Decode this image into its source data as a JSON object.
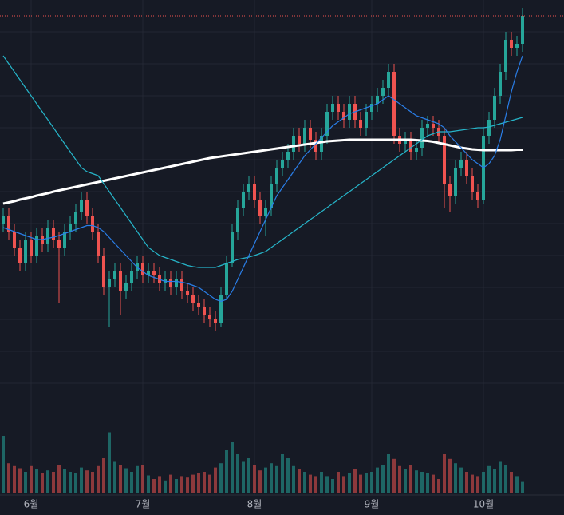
{
  "chart_data": {
    "type": "candlestick",
    "categories": [
      null,
      null,
      null,
      null,
      null,
      "6월",
      null,
      null,
      null,
      null,
      null,
      null,
      null,
      null,
      null,
      null,
      null,
      null,
      null,
      null,
      null,
      null,
      null,
      null,
      null,
      "7월",
      null,
      null,
      null,
      null,
      null,
      null,
      null,
      null,
      null,
      null,
      null,
      null,
      null,
      null,
      null,
      null,
      null,
      null,
      null,
      "8월",
      null,
      null,
      null,
      null,
      null,
      null,
      null,
      null,
      null,
      null,
      null,
      null,
      null,
      null,
      null,
      null,
      null,
      null,
      null,
      null,
      "9월",
      null,
      null,
      null,
      null,
      null,
      null,
      null,
      null,
      null,
      null,
      null,
      null,
      null,
      null,
      null,
      null,
      null,
      null,
      null,
      "10월",
      null,
      null,
      null,
      null,
      null,
      null,
      null
    ],
    "open": [
      48,
      50,
      46,
      42,
      38,
      44,
      40,
      45,
      43,
      47,
      44,
      42,
      46,
      48,
      51,
      54,
      50,
      46,
      40,
      32,
      34,
      36,
      31,
      33,
      36,
      38,
      35,
      36,
      35,
      33,
      34,
      32,
      34,
      31,
      30,
      28,
      27,
      25,
      24,
      23,
      30,
      38,
      46,
      52,
      56,
      58,
      54,
      50,
      52,
      58,
      62,
      64,
      66,
      70,
      68,
      72,
      69,
      66,
      70,
      76,
      78,
      76,
      74,
      78,
      74,
      72,
      76,
      78,
      80,
      82,
      86,
      70,
      68,
      69,
      66,
      67,
      72,
      73,
      72,
      70,
      58,
      55,
      62,
      64,
      60,
      56,
      54,
      70,
      74,
      80,
      86,
      94,
      92,
      93
    ],
    "high": [
      52,
      52,
      48,
      44,
      46,
      46,
      47,
      47,
      49,
      49,
      46,
      48,
      50,
      53,
      56,
      56,
      52,
      48,
      42,
      36,
      38,
      38,
      35,
      38,
      40,
      40,
      38,
      38,
      37,
      36,
      36,
      36,
      36,
      33,
      32,
      30,
      29,
      27,
      26,
      32,
      40,
      48,
      54,
      58,
      60,
      60,
      56,
      54,
      60,
      64,
      66,
      68,
      72,
      72,
      74,
      74,
      71,
      72,
      78,
      80,
      80,
      78,
      80,
      80,
      76,
      78,
      80,
      82,
      84,
      88,
      88,
      72,
      71,
      71,
      69,
      74,
      75,
      75,
      74,
      72,
      60,
      64,
      66,
      66,
      62,
      58,
      72,
      76,
      82,
      88,
      96,
      96,
      95,
      102
    ],
    "low": [
      46,
      44,
      40,
      36,
      36,
      38,
      38,
      41,
      41,
      42,
      28,
      40,
      44,
      46,
      49,
      48,
      44,
      38,
      30,
      22,
      32,
      25,
      29,
      31,
      34,
      33,
      33,
      33,
      31,
      31,
      30,
      30,
      29,
      28,
      26,
      25,
      23,
      22,
      21,
      22,
      29,
      37,
      44,
      50,
      54,
      52,
      48,
      45,
      50,
      56,
      60,
      62,
      64,
      66,
      66,
      67,
      64,
      64,
      68,
      74,
      74,
      72,
      72,
      72,
      70,
      70,
      74,
      76,
      78,
      80,
      68,
      66,
      66,
      64,
      64,
      65,
      70,
      70,
      68,
      52,
      51,
      53,
      60,
      58,
      54,
      52,
      53,
      68,
      72,
      78,
      84,
      90,
      90,
      91
    ],
    "close": [
      50,
      46,
      42,
      38,
      44,
      40,
      45,
      43,
      47,
      44,
      42,
      46,
      48,
      51,
      54,
      50,
      46,
      40,
      32,
      34,
      36,
      31,
      33,
      36,
      38,
      35,
      36,
      35,
      33,
      34,
      32,
      34,
      31,
      30,
      28,
      27,
      25,
      24,
      23,
      30,
      38,
      46,
      52,
      56,
      58,
      54,
      50,
      52,
      58,
      62,
      64,
      66,
      70,
      68,
      72,
      69,
      66,
      70,
      76,
      78,
      76,
      74,
      78,
      74,
      72,
      76,
      78,
      80,
      82,
      86,
      70,
      68,
      69,
      66,
      67,
      72,
      73,
      72,
      70,
      58,
      55,
      62,
      64,
      60,
      56,
      54,
      70,
      74,
      80,
      86,
      94,
      92,
      93,
      100
    ],
    "volume": [
      80,
      42,
      38,
      35,
      30,
      38,
      34,
      28,
      32,
      30,
      40,
      34,
      30,
      28,
      36,
      32,
      30,
      38,
      50,
      85,
      45,
      40,
      35,
      30,
      38,
      40,
      25,
      20,
      24,
      18,
      26,
      20,
      24,
      22,
      26,
      28,
      30,
      26,
      36,
      42,
      60,
      72,
      55,
      45,
      50,
      40,
      32,
      36,
      42,
      38,
      55,
      50,
      38,
      34,
      30,
      26,
      24,
      30,
      24,
      20,
      30,
      24,
      28,
      34,
      26,
      28,
      30,
      36,
      40,
      55,
      48,
      38,
      34,
      40,
      32,
      30,
      28,
      26,
      20,
      55,
      48,
      42,
      36,
      30,
      26,
      24,
      30,
      38,
      34,
      45,
      40,
      30,
      24,
      16
    ],
    "lines": [
      {
        "color": "#ffffff",
        "values": [
          53,
          53.3,
          53.6,
          54,
          54.3,
          54.6,
          55,
          55.3,
          55.6,
          56,
          56.3,
          56.6,
          56.9,
          57.2,
          57.5,
          57.8,
          58.1,
          58.4,
          58.7,
          59,
          59.3,
          59.6,
          59.9,
          60.2,
          60.5,
          60.8,
          61.1,
          61.4,
          61.7,
          62,
          62.3,
          62.6,
          62.9,
          63.2,
          63.5,
          63.8,
          64.1,
          64.4,
          64.6,
          64.8,
          65,
          65.2,
          65.4,
          65.6,
          65.8,
          66,
          66.2,
          66.4,
          66.6,
          66.8,
          67,
          67.2,
          67.4,
          67.6,
          67.8,
          68,
          68.2,
          68.4,
          68.6,
          68.7,
          68.8,
          68.9,
          69,
          69,
          69,
          69,
          69,
          69,
          69,
          69,
          69,
          69,
          69,
          69,
          68.9,
          68.8,
          68.7,
          68.5,
          68.2,
          67.9,
          67.6,
          67.3,
          67,
          66.8,
          66.6,
          66.5,
          66.4,
          66.4,
          66.4,
          66.4,
          66.4,
          66.4,
          66.5,
          66.5
        ]
      },
      {
        "color": "#26b5c9",
        "values": [
          90,
          88,
          86,
          84,
          82,
          80,
          78,
          76,
          74,
          72,
          70,
          68,
          66,
          64,
          62,
          61,
          60.5,
          60,
          58,
          56,
          54,
          52,
          50,
          48,
          46,
          44,
          42,
          41,
          40,
          39.5,
          39,
          38.5,
          38,
          37.5,
          37.2,
          37,
          37,
          37,
          37,
          37.5,
          38,
          38.5,
          39,
          39.3,
          39.6,
          40,
          40.5,
          41,
          42,
          43,
          44,
          45,
          46,
          47,
          48,
          49,
          50,
          51,
          52,
          53,
          54,
          55,
          56,
          57,
          58,
          59,
          60,
          61,
          62,
          63,
          64,
          65,
          66,
          67,
          68,
          69,
          70,
          70.5,
          71,
          71,
          71,
          71.2,
          71.4,
          71.6,
          71.8,
          72,
          72,
          72.2,
          72.6,
          73,
          73.4,
          73.8,
          74.2,
          74.6
        ]
      },
      {
        "color": "#2a7ee8",
        "values": [
          47,
          46.5,
          46,
          45.5,
          45,
          44.5,
          44,
          44,
          44.3,
          44.6,
          45,
          45.5,
          46,
          46.5,
          47,
          47.5,
          47.5,
          47,
          46,
          44.5,
          43,
          41.5,
          40,
          38.5,
          37,
          36,
          35,
          34.5,
          34,
          33.5,
          33.5,
          33.5,
          33.3,
          33,
          32.5,
          32,
          31,
          30,
          29,
          28.5,
          29,
          31,
          34,
          37,
          40,
          43,
          46,
          49,
          52,
          55,
          57,
          59,
          61,
          63,
          65,
          66.5,
          68,
          69.5,
          71,
          72.5,
          73.5,
          74.5,
          75.5,
          76,
          76.5,
          77,
          77.5,
          78,
          79,
          80,
          79,
          78,
          77,
          76,
          75,
          74.5,
          74,
          73.5,
          73,
          72,
          70,
          68.5,
          67,
          65.5,
          64,
          63,
          62,
          63,
          65,
          69,
          75,
          81,
          86,
          90
        ]
      }
    ],
    "up_color": "#26a69a",
    "down_color": "#ef5350",
    "ylim": [
      0,
      104
    ],
    "yticks": [
      8,
      16,
      24,
      32,
      40,
      48,
      56,
      64,
      72,
      80,
      88,
      96
    ],
    "volume_ylim": [
      0,
      100
    ],
    "grid": true
  }
}
